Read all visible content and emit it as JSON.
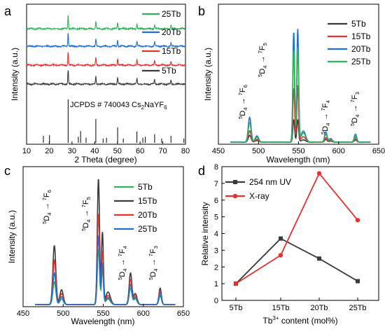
{
  "figure": {
    "panels": [
      {
        "letter": "a",
        "xlabel": "2 Theta (degree)",
        "ylabel": "Intensity (a.u.)",
        "xticks": [
          "10",
          "20",
          "30",
          "40",
          "50",
          "60",
          "70",
          "80"
        ],
        "legend": [
          "25Tb",
          "20Tb",
          "15Tb",
          "5Tb"
        ],
        "reference_label_main": "JCPDS # 740043 Cs",
        "reference_label_sub1": "2",
        "reference_label_mid": "NaYF",
        "reference_label_sub2": "6"
      },
      {
        "letter": "b",
        "xlabel": "Wavelength (nm)",
        "ylabel": "Intensity (a.u.)",
        "xticks": [
          "450",
          "500",
          "550",
          "600",
          "650"
        ],
        "legend": [
          "5Tb",
          "15Tb",
          "20Tb",
          "25Tb"
        ]
      },
      {
        "letter": "c",
        "xlabel": "Wavelength (nm)",
        "ylabel": "Intensity (a.u.)",
        "xticks": [
          "450",
          "500",
          "550",
          "600",
          "650"
        ],
        "legend": [
          "5Tb",
          "15Tb",
          "20Tb",
          "25Tb"
        ]
      },
      {
        "letter": "d",
        "ylabel": "Relative intensity",
        "xlabel_pre": "Tb",
        "xlabel_sup": "3+",
        "xlabel_post": " content (mol%)",
        "legend": [
          "254 nm UV",
          "X-ray"
        ]
      }
    ],
    "transitions": {
      "F6": {
        "sup1": "5",
        "d": "D",
        "sub": "4",
        "arrow": "→",
        "sup2": "7",
        "f": "F",
        "subf": "6"
      },
      "F5": {
        "sup1": "5",
        "d": "D",
        "sub": "4",
        "arrow": "→",
        "sup2": "7",
        "f": "F",
        "subf": "5"
      },
      "F4": {
        "sup1": "5",
        "d": "D",
        "sub": "4",
        "arrow": "→",
        "sup2": "7",
        "f": "F",
        "subf": "4"
      },
      "F3": {
        "sup1": "5",
        "d": "D",
        "sub": "4",
        "arrow": "→",
        "sup2": "7",
        "f": "F",
        "subf": "3"
      }
    }
  },
  "colors": {
    "5Tb_ab": "#3a3a3a",
    "15Tb": "#e8302c",
    "20Tb": "#1f6fd6",
    "25Tb_ab": "#2fb35a",
    "5Tb_c": "#2fb35a",
    "15Tb_c": "#3a3a3a",
    "uv": "#3a3a3a",
    "xray": "#e8302c"
  },
  "chart_data": [
    {
      "panel": "a",
      "type": "line",
      "title": "",
      "xlabel": "2 Theta (degree)",
      "ylabel": "Intensity (a.u.)",
      "xlim": [
        10,
        80
      ],
      "peaks_2theta": [
        28.3,
        40.5,
        50.1,
        58.6,
        66.4,
        73.6
      ],
      "series": [
        {
          "name": "25Tb"
        },
        {
          "name": "20Tb"
        },
        {
          "name": "15Tb"
        },
        {
          "name": "5Tb"
        }
      ],
      "reference": {
        "name": "JCPDS # 740043 Cs2NaYF6",
        "positions": [
          17.4,
          20.1,
          28.3,
          32.8,
          33.8,
          36.2,
          40.5,
          43.7,
          45.2,
          50.1,
          52.6,
          58.6,
          61.2,
          62.3,
          66.4,
          69.5,
          73.6,
          79.3
        ],
        "heights": [
          0.16,
          0.18,
          1.0,
          0.14,
          0.27,
          0.12,
          0.55,
          0.1,
          0.12,
          0.36,
          0.1,
          0.26,
          0.12,
          0.14,
          0.2,
          0.1,
          0.16,
          0.1
        ]
      }
    },
    {
      "panel": "b",
      "type": "line",
      "xlabel": "Wavelength (nm)",
      "ylabel": "Intensity (a.u.)",
      "xlim": [
        450,
        650
      ],
      "peaks_nm": [
        489,
        544,
        549,
        584,
        621
      ],
      "series": [
        {
          "name": "5Tb",
          "heights": [
            0.06,
            0.2,
            0.2,
            0.025,
            0.02
          ]
        },
        {
          "name": "15Tb",
          "heights": [
            0.1,
            0.48,
            0.5,
            0.04,
            0.035
          ]
        },
        {
          "name": "20Tb",
          "heights": [
            0.22,
            0.98,
            1.0,
            0.09,
            0.07
          ]
        },
        {
          "name": "25Tb",
          "heights": [
            0.17,
            0.82,
            0.84,
            0.07,
            0.05
          ]
        }
      ]
    },
    {
      "panel": "c",
      "type": "line",
      "xlabel": "Wavelength (nm)",
      "ylabel": "Intensity (a.u.)",
      "xlim": [
        450,
        650
      ],
      "peaks_nm": [
        489,
        544,
        549,
        584,
        621
      ],
      "series": [
        {
          "name": "5Tb",
          "heights": [
            0.18,
            0.44,
            0.28,
            0.13,
            0.07
          ]
        },
        {
          "name": "15Tb",
          "heights": [
            0.47,
            1.0,
            0.57,
            0.25,
            0.13
          ]
        },
        {
          "name": "20Tb",
          "heights": [
            0.35,
            0.72,
            0.42,
            0.2,
            0.11
          ]
        },
        {
          "name": "25Tb",
          "heights": [
            0.25,
            0.55,
            0.33,
            0.16,
            0.09
          ]
        }
      ]
    },
    {
      "panel": "d",
      "type": "line",
      "ylabel": "Relative intensity",
      "xlabel": "Tb3+ content (mol%)",
      "categories": [
        "5Tb",
        "15Tb",
        "20Tb",
        "25Tb"
      ],
      "ylim": [
        0,
        8
      ],
      "yticks": [
        0,
        1,
        2,
        3,
        4,
        5,
        6,
        7,
        8
      ],
      "series": [
        {
          "name": "254 nm UV",
          "values": [
            1.0,
            3.7,
            2.5,
            1.15
          ]
        },
        {
          "name": "X-ray",
          "values": [
            1.0,
            2.7,
            7.6,
            4.8
          ]
        }
      ]
    }
  ]
}
